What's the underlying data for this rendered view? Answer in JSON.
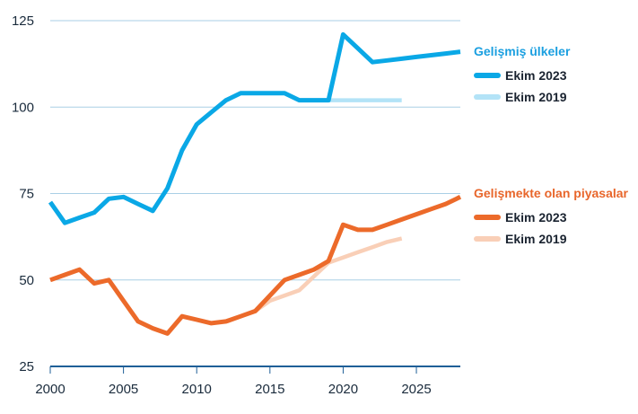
{
  "chart_data": {
    "type": "line",
    "title": "",
    "xlabel": "",
    "ylabel": "",
    "xlim": [
      2000,
      2028
    ],
    "ylim": [
      25,
      125
    ],
    "xticks": [
      2000,
      2005,
      2010,
      2015,
      2020,
      2025
    ],
    "yticks": [
      25,
      50,
      75,
      100,
      125
    ],
    "groups": [
      {
        "title": "Gelişmiş ülkeler",
        "color": "#1a9fe0",
        "series": [
          {
            "name": "Ekim 2023",
            "color": "#0aa8e6",
            "x": [
              2000,
              2001,
              2002,
              2003,
              2004,
              2005,
              2006,
              2007,
              2008,
              2009,
              2010,
              2011,
              2012,
              2013,
              2014,
              2015,
              2016,
              2017,
              2018,
              2019,
              2020,
              2021,
              2022,
              2023,
              2024,
              2025,
              2026,
              2027,
              2028
            ],
            "y": [
              72.5,
              66.5,
              68,
              69.5,
              73.5,
              74,
              72,
              70,
              76.5,
              87.5,
              95,
              98.5,
              102,
              104,
              104,
              104,
              104,
              102,
              102,
              102,
              121,
              117,
              113,
              113.5,
              114,
              114.5,
              115,
              115.5,
              116
            ]
          },
          {
            "name": "Ekim 2019",
            "color": "#b3e3f7",
            "x": [
              2019,
              2020,
              2021,
              2022,
              2023,
              2024
            ],
            "y": [
              102,
              102,
              102,
              102,
              102,
              102
            ]
          }
        ]
      },
      {
        "title": "Gelişmekte olan piyasalar",
        "color": "#e8662b",
        "series": [
          {
            "name": "Ekim 2023",
            "color": "#ec6a2a",
            "x": [
              2000,
              2001,
              2002,
              2003,
              2004,
              2005,
              2006,
              2007,
              2008,
              2009,
              2010,
              2011,
              2012,
              2013,
              2014,
              2015,
              2016,
              2017,
              2018,
              2019,
              2020,
              2021,
              2022,
              2023,
              2024,
              2025,
              2026,
              2027,
              2028
            ],
            "y": [
              50,
              51.5,
              53,
              49,
              50,
              44,
              38,
              36,
              34.5,
              39.5,
              38.5,
              37.5,
              38,
              39.5,
              41,
              45.5,
              50,
              51.5,
              53,
              55.5,
              66,
              64.5,
              64.5,
              66,
              67.5,
              69,
              70.5,
              72,
              74
            ]
          },
          {
            "name": "Ekim 2019",
            "color": "#f9cfb7",
            "x": [
              2014,
              2015,
              2016,
              2017,
              2018,
              2019,
              2020,
              2021,
              2022,
              2023,
              2024
            ],
            "y": [
              41,
              44,
              45.5,
              47,
              51,
              55,
              56.5,
              58,
              59.5,
              61,
              62
            ]
          }
        ]
      }
    ]
  }
}
